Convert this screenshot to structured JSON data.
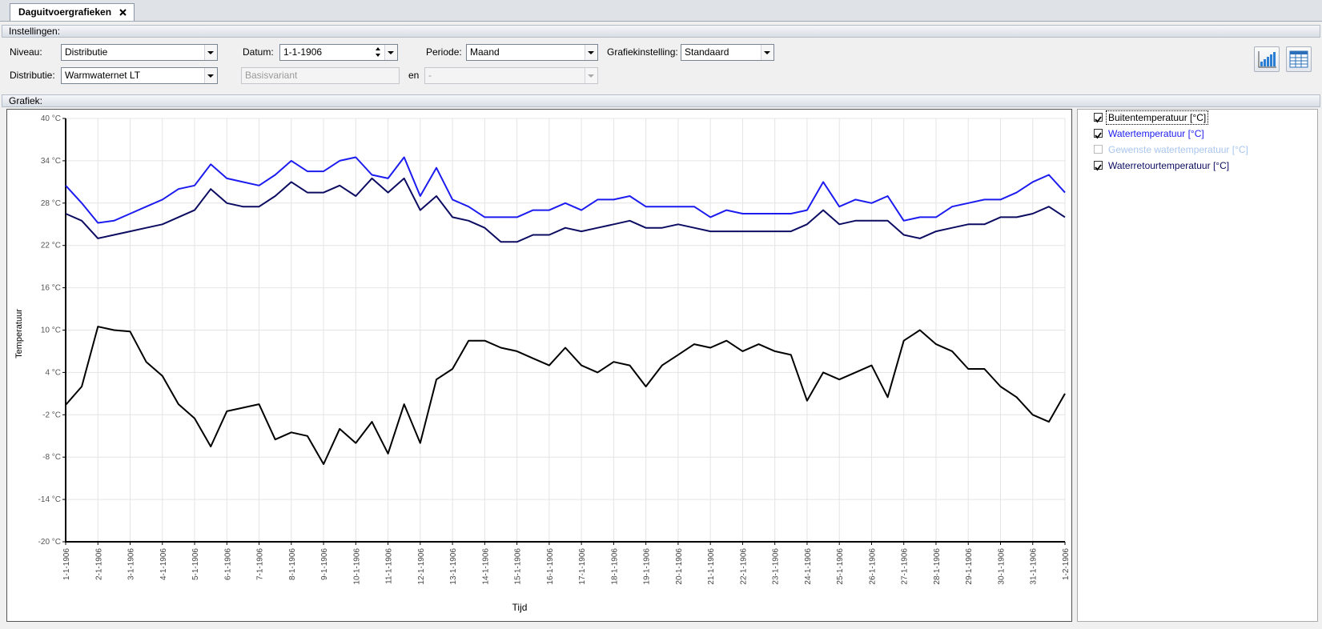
{
  "tab": {
    "title": "Daguitvoergrafieken"
  },
  "settings": {
    "title": "Instellingen:",
    "niveau": {
      "label": "Niveau:",
      "value": "Distributie"
    },
    "datum": {
      "label": "Datum:",
      "value": "1-1-1906"
    },
    "periode": {
      "label": "Periode:",
      "value": "Maand"
    },
    "grafiekinstelling": {
      "label": "Grafiekinstelling:",
      "value": "Standaard"
    },
    "distributie": {
      "label": "Distributie:",
      "value": "Warmwaternet LT"
    },
    "variant": {
      "value": "Basisvariant"
    },
    "en": "en",
    "vergelijk": {
      "value": "-"
    }
  },
  "graph_section": {
    "title": "Grafiek:"
  },
  "chart_data": {
    "type": "line",
    "x_label": "Tijd",
    "y_label": "Temperatuur",
    "categories": [
      "1-1-1906",
      null,
      "2-1-1906",
      null,
      "3-1-1906",
      null,
      "4-1-1906",
      null,
      "5-1-1906",
      null,
      "6-1-1906",
      null,
      "7-1-1906",
      null,
      "8-1-1906",
      null,
      "9-1-1906",
      null,
      "10-1-1906",
      null,
      "11-1-1906",
      null,
      "12-1-1906",
      null,
      "13-1-1906",
      null,
      "14-1-1906",
      null,
      "15-1-1906",
      null,
      "16-1-1906",
      null,
      "17-1-1906",
      null,
      "18-1-1906",
      null,
      "19-1-1906",
      null,
      "20-1-1906",
      null,
      "21-1-1906",
      null,
      "22-1-1906",
      null,
      "23-1-1906",
      null,
      "24-1-1906",
      null,
      "25-1-1906",
      null,
      "26-1-1906",
      null,
      "27-1-1906",
      null,
      "28-1-1906",
      null,
      "29-1-1906",
      null,
      "30-1-1906",
      null,
      "31-1-1906",
      null,
      "1-2-1906"
    ],
    "series": [
      {
        "name": "Buitentemperatuur [°C]",
        "color": "#000000",
        "checked": true,
        "values": [
          -0.6,
          2,
          10.5,
          10,
          9.8,
          5.5,
          3.5,
          -0.5,
          -2.5,
          -6.5,
          -1.5,
          -1,
          -0.5,
          -5.5,
          -4.5,
          -5,
          -9,
          -4,
          -6,
          -3,
          -7.5,
          -0.5,
          -6,
          3,
          4.5,
          8.5,
          8.5,
          7.5,
          7,
          6,
          5,
          7.5,
          5,
          4,
          5.5,
          5,
          2,
          5,
          6.5,
          8,
          7.5,
          8.5,
          7,
          8,
          7,
          6.5,
          0,
          4,
          3,
          4,
          5,
          0.5,
          8.5,
          10,
          8,
          7,
          4.5,
          4.5,
          2,
          0.5,
          -2,
          -3,
          1
        ]
      },
      {
        "name": "Watertemperatuur [°C]",
        "color": "#1c1cf0",
        "checked": true,
        "values": [
          30.5,
          28,
          25.2,
          25.5,
          26.5,
          27.5,
          28.5,
          30,
          30.5,
          33.5,
          31.5,
          31,
          30.5,
          32,
          34,
          32.5,
          32.5,
          34,
          34.5,
          32,
          31.5,
          34.5,
          29,
          33,
          28.5,
          27.5,
          26,
          26,
          26,
          27,
          27,
          28,
          27,
          28.5,
          28.5,
          29,
          27.5,
          27.5,
          27.5,
          27.5,
          26,
          27,
          26.5,
          26.5,
          26.5,
          26.5,
          27,
          31,
          27.5,
          28.5,
          28,
          29,
          25.5,
          26,
          26,
          27.5,
          28,
          28.5,
          28.5,
          29.5,
          31,
          32,
          29.5
        ]
      },
      {
        "name": "Gewenste watertemperatuur [°C]",
        "color": "#a9c6ee",
        "checked": false,
        "values": [
          null,
          null,
          null,
          null,
          null,
          null,
          null,
          null,
          null,
          null,
          null,
          null,
          null,
          null,
          null,
          null,
          null,
          null,
          null,
          null,
          null,
          null,
          null,
          null,
          null,
          null,
          null,
          null,
          null,
          null,
          null,
          null,
          null,
          null,
          null,
          null,
          null,
          null,
          null,
          null,
          null,
          null,
          null,
          null,
          null,
          null,
          null,
          null,
          null,
          null,
          null,
          null,
          null,
          null,
          null,
          null,
          null,
          null,
          null,
          null,
          null,
          null,
          null
        ]
      },
      {
        "name": "Waterretourtemperatuur [°C]",
        "color": "#0c0c62",
        "checked": true,
        "values": [
          26.5,
          25.5,
          23,
          23.5,
          24,
          24.5,
          25,
          26,
          27,
          30,
          28,
          27.5,
          27.5,
          29,
          31,
          29.5,
          29.5,
          30.5,
          29,
          31.5,
          29.5,
          31.5,
          27,
          29,
          26,
          25.5,
          24.5,
          22.5,
          22.5,
          23.5,
          23.5,
          24.5,
          24,
          24.5,
          25,
          25.5,
          24.5,
          24.5,
          25,
          24.5,
          24,
          24,
          24,
          24,
          24,
          24,
          25,
          27,
          25,
          25.5,
          25.5,
          25.5,
          23.5,
          23,
          24,
          24.5,
          25,
          25,
          26,
          26,
          26.5,
          27.5,
          26
        ]
      }
    ],
    "ylim": [
      -20,
      40
    ],
    "yticks": [
      {
        "value": -20,
        "label": "-20 °C"
      },
      {
        "value": -14,
        "label": "-14 °C"
      },
      {
        "value": -8,
        "label": "-8 °C"
      },
      {
        "value": -2,
        "label": "-2 °C"
      },
      {
        "value": 4,
        "label": "4 °C"
      },
      {
        "value": 10,
        "label": "10 °C"
      },
      {
        "value": 16,
        "label": "16 °C"
      },
      {
        "value": 22,
        "label": "22 °C"
      },
      {
        "value": 28,
        "label": "28 °C"
      },
      {
        "value": 34,
        "label": "34 °C"
      },
      {
        "value": 40,
        "label": "40 °C"
      }
    ],
    "grid": true
  }
}
